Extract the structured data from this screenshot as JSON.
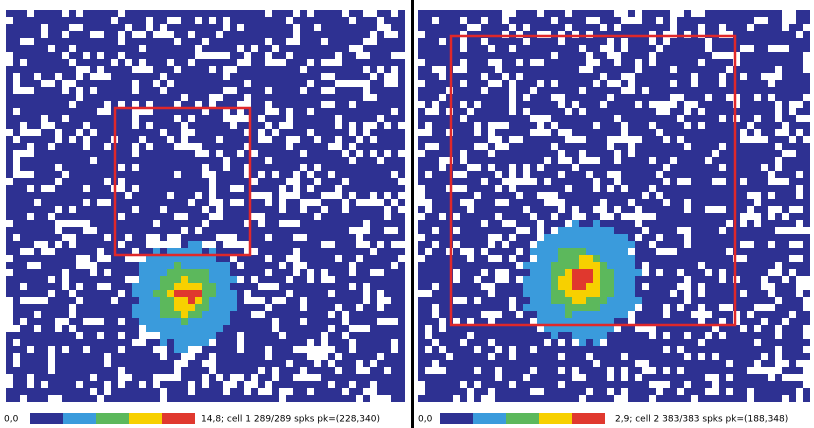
{
  "panels": [
    {
      "min_label": "0,0",
      "info": "14,8; cell 1 289/289 spks pk=(228,340)"
    },
    {
      "min_label": "0,0",
      "info": "2,9; cell 2 383/383 spks pk=(188,348)"
    }
  ],
  "colorbar": [
    "#2e3192",
    "#3a9bdc",
    "#5cb85c",
    "#f7d000",
    "#e0382e"
  ]
}
